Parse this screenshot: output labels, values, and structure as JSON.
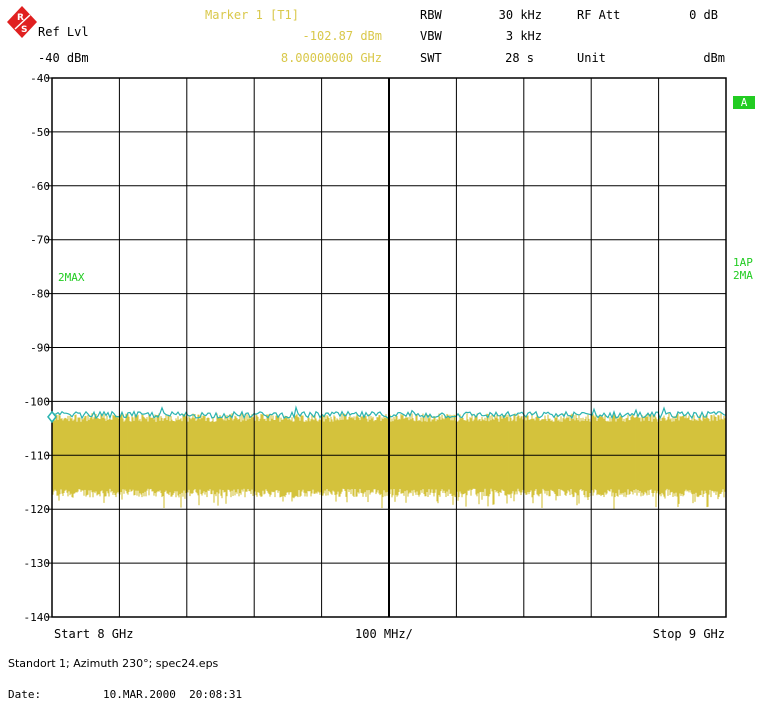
{
  "header": {
    "ref_lvl_label": "Ref Lvl",
    "ref_lvl_value": "-40 dBm",
    "marker_title": "Marker 1 [T1]",
    "marker_level": "-102.87 dBm",
    "marker_freq": "8.00000000 GHz",
    "rbw_label": "RBW",
    "rbw_value": "30 kHz",
    "vbw_label": "VBW",
    "vbw_value": "3 kHz",
    "swt_label": "SWT",
    "swt_value": "28 s",
    "rfatt_label": "RF Att",
    "rfatt_value": "0 dB",
    "unit_label": "Unit",
    "unit_value": "dBm"
  },
  "side_labels": {
    "badge": "A",
    "left_trace": "2MAX",
    "right_trace_1": "1AP",
    "right_trace_2": "2MA"
  },
  "footer": {
    "start": "Start 8 GHz",
    "span": "100 MHz/",
    "stop": "Stop 9 GHz",
    "caption": "Standort 1; Azimuth 230°; spec24.eps",
    "date_label": "Date:",
    "date_value": "10.MAR.2000  20:08:31"
  },
  "colors": {
    "grid": "#000000",
    "trace_max": "#2ab3b0",
    "trace_avg": "#d4c33c",
    "accent_green": "#22cc22",
    "header_yellow": "#d9c84a"
  },
  "logo": {
    "icon": "rohde-schwarz-logo-icon"
  },
  "chart_data": {
    "type": "line",
    "xlabel": "",
    "ylabel": "",
    "x_range_ghz": [
      8,
      9
    ],
    "ylim": [
      -140,
      -40
    ],
    "y_ticks": [
      "-40",
      "-50",
      "-60",
      "-70",
      "-80",
      "-90",
      "-100",
      "-110",
      "-120",
      "-130",
      "-140"
    ],
    "grid": true,
    "series": [
      {
        "name": "2MAX",
        "level_dbm": -102.5,
        "ripple_db": 1.0
      },
      {
        "name": "1AP",
        "band_top_dbm": -103,
        "band_bottom_dbm": -117,
        "spike_min_dbm": -120
      }
    ],
    "marker": {
      "label": "Marker 1 [T1]",
      "freq_ghz": 8.0,
      "level_dbm": -102.87
    }
  }
}
